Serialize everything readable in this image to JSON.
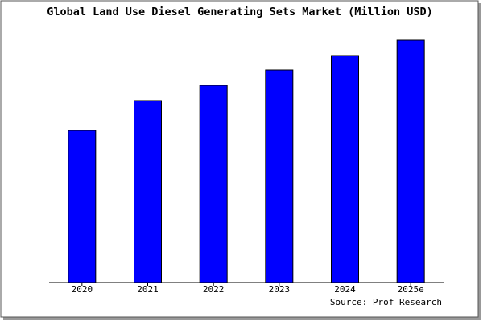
{
  "chart_data": {
    "type": "bar",
    "title": "Global Land Use Diesel Generating Sets Market (Million USD)",
    "categories": [
      "2020",
      "2021",
      "2022",
      "2023",
      "2024",
      "2025e"
    ],
    "values": [
      189,
      226,
      245,
      264,
      282,
      301
    ],
    "color": "#0000ff",
    "ylim": [
      0,
      303
    ],
    "source": "Source: Prof Research"
  }
}
